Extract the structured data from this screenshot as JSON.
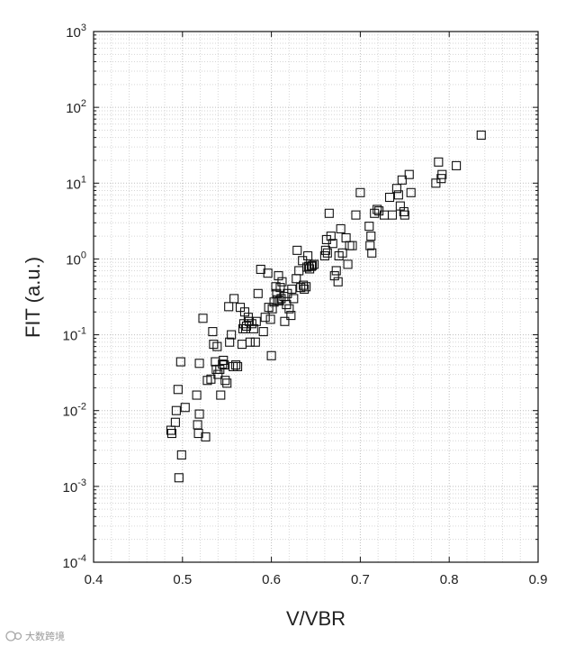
{
  "chart_data": {
    "type": "scatter",
    "xlabel": "V/VBR",
    "ylabel": "FIT (a.u.)",
    "xlim": [
      0.4,
      0.9
    ],
    "ylim": [
      0.0001,
      1000
    ],
    "yscale": "log",
    "x_ticks": [
      "0.4",
      "0.5",
      "0.6",
      "0.7",
      "0.8",
      "0.9"
    ],
    "y_ticks": [
      {
        "base": "10",
        "exp": "-4",
        "value": 0.0001
      },
      {
        "base": "10",
        "exp": "-3",
        "value": 0.001
      },
      {
        "base": "10",
        "exp": "-2",
        "value": 0.01
      },
      {
        "base": "10",
        "exp": "-1",
        "value": 0.1
      },
      {
        "base": "10",
        "exp": "0",
        "value": 1
      },
      {
        "base": "10",
        "exp": "1",
        "value": 10
      },
      {
        "base": "10",
        "exp": "2",
        "value": 100
      },
      {
        "base": "10",
        "exp": "3",
        "value": 1000
      }
    ],
    "grid": true,
    "marker": "open-square",
    "points": [
      [
        0.487,
        0.0055
      ],
      [
        0.488,
        0.005
      ],
      [
        0.492,
        0.007
      ],
      [
        0.493,
        0.01
      ],
      [
        0.495,
        0.019
      ],
      [
        0.496,
        0.0013
      ],
      [
        0.498,
        0.044
      ],
      [
        0.499,
        0.0026
      ],
      [
        0.503,
        0.011
      ],
      [
        0.516,
        0.016
      ],
      [
        0.517,
        0.0065
      ],
      [
        0.518,
        0.005
      ],
      [
        0.519,
        0.009
      ],
      [
        0.519,
        0.042
      ],
      [
        0.523,
        0.165
      ],
      [
        0.526,
        0.0045
      ],
      [
        0.528,
        0.025
      ],
      [
        0.532,
        0.026
      ],
      [
        0.534,
        0.11
      ],
      [
        0.535,
        0.075
      ],
      [
        0.537,
        0.044
      ],
      [
        0.538,
        0.035
      ],
      [
        0.539,
        0.07
      ],
      [
        0.54,
        0.03
      ],
      [
        0.542,
        0.035
      ],
      [
        0.543,
        0.016
      ],
      [
        0.545,
        0.041
      ],
      [
        0.546,
        0.046
      ],
      [
        0.547,
        0.04
      ],
      [
        0.548,
        0.025
      ],
      [
        0.55,
        0.023
      ],
      [
        0.552,
        0.235
      ],
      [
        0.553,
        0.08
      ],
      [
        0.555,
        0.1
      ],
      [
        0.557,
        0.038
      ],
      [
        0.558,
        0.3
      ],
      [
        0.56,
        0.04
      ],
      [
        0.562,
        0.038
      ],
      [
        0.565,
        0.23
      ],
      [
        0.567,
        0.075
      ],
      [
        0.568,
        0.12
      ],
      [
        0.569,
        0.14
      ],
      [
        0.57,
        0.2
      ],
      [
        0.571,
        0.12
      ],
      [
        0.572,
        0.13
      ],
      [
        0.574,
        0.17
      ],
      [
        0.575,
        0.15
      ],
      [
        0.576,
        0.08
      ],
      [
        0.578,
        0.14
      ],
      [
        0.58,
        0.12
      ],
      [
        0.582,
        0.08
      ],
      [
        0.583,
        0.15
      ],
      [
        0.585,
        0.35
      ],
      [
        0.588,
        0.73
      ],
      [
        0.591,
        0.11
      ],
      [
        0.593,
        0.17
      ],
      [
        0.596,
        0.65
      ],
      [
        0.597,
        0.23
      ],
      [
        0.599,
        0.16
      ],
      [
        0.6,
        0.053
      ],
      [
        0.601,
        0.22
      ],
      [
        0.603,
        0.27
      ],
      [
        0.605,
        0.43
      ],
      [
        0.606,
        0.35
      ],
      [
        0.607,
        0.29
      ],
      [
        0.608,
        0.6
      ],
      [
        0.609,
        0.28
      ],
      [
        0.61,
        0.42
      ],
      [
        0.611,
        0.3
      ],
      [
        0.612,
        0.5
      ],
      [
        0.614,
        0.32
      ],
      [
        0.615,
        0.15
      ],
      [
        0.617,
        0.25
      ],
      [
        0.618,
        0.35
      ],
      [
        0.62,
        0.22
      ],
      [
        0.622,
        0.18
      ],
      [
        0.623,
        0.4
      ],
      [
        0.625,
        0.3
      ],
      [
        0.628,
        0.55
      ],
      [
        0.629,
        1.3
      ],
      [
        0.631,
        0.7
      ],
      [
        0.633,
        0.42
      ],
      [
        0.635,
        0.95
      ],
      [
        0.636,
        0.45
      ],
      [
        0.637,
        0.4
      ],
      [
        0.639,
        0.43
      ],
      [
        0.64,
        0.78
      ],
      [
        0.641,
        1.1
      ],
      [
        0.642,
        0.8
      ],
      [
        0.643,
        0.74
      ],
      [
        0.645,
        0.8
      ],
      [
        0.646,
        0.82
      ],
      [
        0.648,
        0.85
      ],
      [
        0.66,
        1.1
      ],
      [
        0.661,
        1.3
      ],
      [
        0.662,
        1.8
      ],
      [
        0.663,
        1.2
      ],
      [
        0.665,
        4.0
      ],
      [
        0.667,
        2.0
      ],
      [
        0.669,
        1.6
      ],
      [
        0.671,
        0.6
      ],
      [
        0.673,
        0.7
      ],
      [
        0.675,
        0.5
      ],
      [
        0.676,
        1.1
      ],
      [
        0.678,
        2.5
      ],
      [
        0.68,
        1.2
      ],
      [
        0.684,
        1.9
      ],
      [
        0.686,
        0.85
      ],
      [
        0.688,
        1.5
      ],
      [
        0.691,
        1.5
      ],
      [
        0.695,
        3.8
      ],
      [
        0.7,
        7.5
      ],
      [
        0.71,
        2.7
      ],
      [
        0.711,
        1.5
      ],
      [
        0.712,
        2.0
      ],
      [
        0.713,
        1.2
      ],
      [
        0.716,
        4.0
      ],
      [
        0.719,
        4.5
      ],
      [
        0.721,
        4.3
      ],
      [
        0.727,
        3.8
      ],
      [
        0.733,
        6.5
      ],
      [
        0.736,
        3.8
      ],
      [
        0.741,
        8.5
      ],
      [
        0.743,
        7.0
      ],
      [
        0.745,
        5.0
      ],
      [
        0.747,
        11.0
      ],
      [
        0.749,
        4.2
      ],
      [
        0.75,
        3.8
      ],
      [
        0.755,
        13.0
      ],
      [
        0.757,
        7.5
      ],
      [
        0.785,
        10.0
      ],
      [
        0.788,
        19.0
      ],
      [
        0.791,
        11.5
      ],
      [
        0.792,
        13.0
      ],
      [
        0.808,
        17.0
      ],
      [
        0.836,
        43.0
      ]
    ]
  },
  "watermark": {
    "text": "大数跨境",
    "icon": "brand-logo-icon"
  }
}
